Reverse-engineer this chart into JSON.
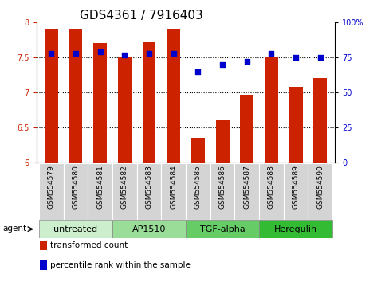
{
  "title": "GDS4361 / 7916403",
  "samples": [
    "GSM554579",
    "GSM554580",
    "GSM554581",
    "GSM554582",
    "GSM554583",
    "GSM554584",
    "GSM554585",
    "GSM554586",
    "GSM554587",
    "GSM554588",
    "GSM554589",
    "GSM554590"
  ],
  "bar_values": [
    7.9,
    7.91,
    7.71,
    7.5,
    7.72,
    7.9,
    6.35,
    6.6,
    6.97,
    7.5,
    7.08,
    7.21
  ],
  "percentile_values": [
    78,
    78,
    79,
    77,
    78,
    78,
    65,
    70,
    72,
    78,
    75,
    75
  ],
  "bar_base": 6.0,
  "ylim_left": [
    6.0,
    8.0
  ],
  "ylim_right": [
    0,
    100
  ],
  "bar_color": "#cc2200",
  "scatter_color": "#0000cc",
  "groups": [
    {
      "label": "untreated",
      "start": 0,
      "end": 3,
      "color": "#cceecc"
    },
    {
      "label": "AP1510",
      "start": 3,
      "end": 6,
      "color": "#99dd99"
    },
    {
      "label": "TGF-alpha",
      "start": 6,
      "end": 9,
      "color": "#66cc66"
    },
    {
      "label": "Heregulin",
      "start": 9,
      "end": 12,
      "color": "#33bb33"
    }
  ],
  "yticks_left": [
    6.0,
    6.5,
    7.0,
    7.5,
    8.0
  ],
  "yticks_right": [
    0,
    25,
    50,
    75,
    100
  ],
  "legend_items": [
    {
      "label": "transformed count",
      "color": "#cc2200"
    },
    {
      "label": "percentile rank within the sample",
      "color": "#0000cc"
    }
  ],
  "agent_label": "agent",
  "title_fontsize": 11,
  "tick_fontsize": 7,
  "label_fontsize": 7.5,
  "group_fontsize": 8
}
